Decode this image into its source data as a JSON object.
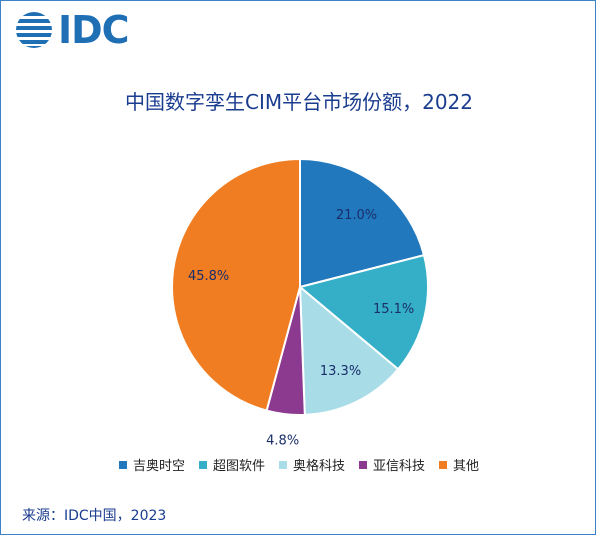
{
  "logo": {
    "text": "IDC"
  },
  "chart_data": {
    "type": "pie",
    "title": "中国数字孪生CIM平台市场份额，2022",
    "categories": [
      "吉奥时空",
      "超图软件",
      "奥格科技",
      "亚信科技",
      "其他"
    ],
    "values": [
      21.0,
      15.1,
      13.3,
      4.8,
      45.8
    ],
    "labels": [
      "21.0%",
      "15.1%",
      "13.3%",
      "4.8%",
      "45.8%"
    ],
    "colors": [
      "#2178bd",
      "#35afc8",
      "#a8dde7",
      "#8b3a8f",
      "#f07d22"
    ],
    "legend_position": "bottom"
  },
  "source": "来源：IDC中国，2023"
}
